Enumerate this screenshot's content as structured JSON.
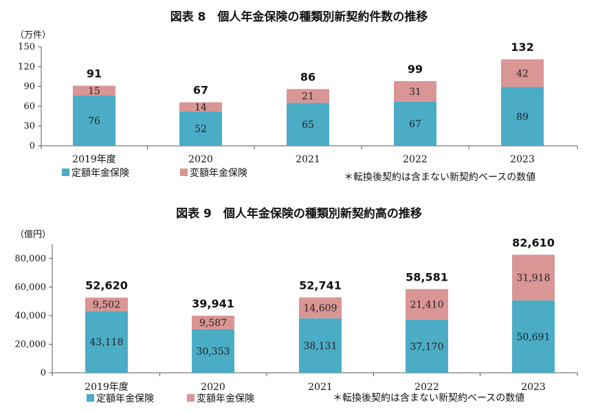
{
  "colors": {
    "fixed": "#4bacc6",
    "variable": "#d99694"
  },
  "chart_data": [
    {
      "type": "bar",
      "stacked": true,
      "title": "図表 8　個人年金保険の種類別新契約件数の推移",
      "unit": "（万件）",
      "categories": [
        "2019年度",
        "2020",
        "2021",
        "2022",
        "2023"
      ],
      "series": [
        {
          "name": "定額年金保険",
          "values": [
            76,
            52,
            65,
            67,
            89
          ]
        },
        {
          "name": "変額年金保険",
          "values": [
            15,
            14,
            21,
            31,
            42
          ]
        }
      ],
      "totals": [
        91,
        67,
        86,
        99,
        132
      ],
      "value_labels": {
        "fixed": [
          "76",
          "52",
          "65",
          "67",
          "89"
        ],
        "variable": [
          "15",
          "14",
          "21",
          "31",
          "42"
        ],
        "totals": [
          "91",
          "67",
          "86",
          "99",
          "132"
        ]
      },
      "ylim": [
        0,
        150
      ],
      "yticks": [
        "0",
        "30",
        "60",
        "90",
        "120",
        "150"
      ],
      "ytick_values": [
        0,
        30,
        60,
        90,
        120,
        150
      ],
      "note": "＊転換後契約は含まない新契約ベースの数値",
      "legend_position": "bottom-left"
    },
    {
      "type": "bar",
      "stacked": true,
      "title": "図表 9　個人年金保険の種類別新契約高の推移",
      "unit": "（億円）",
      "categories": [
        "2019年度",
        "2020",
        "2021",
        "2022",
        "2023"
      ],
      "series": [
        {
          "name": "定額年金保険",
          "values": [
            43118,
            30353,
            38131,
            37170,
            50691
          ]
        },
        {
          "name": "変額年金保険",
          "values": [
            9502,
            9587,
            14609,
            21410,
            31918
          ]
        }
      ],
      "totals": [
        52620,
        39941,
        52741,
        58581,
        82610
      ],
      "value_labels": {
        "fixed": [
          "43,118",
          "30,353",
          "38,131",
          "37,170",
          "50,691"
        ],
        "variable": [
          "9,502",
          "9,587",
          "14,609",
          "21,410",
          "31,918"
        ],
        "totals": [
          "52,620",
          "39,941",
          "52,741",
          "58,581",
          "82,610"
        ]
      },
      "ylim": [
        0,
        90000
      ],
      "yticks": [
        "0",
        "20,000",
        "40,000",
        "60,000",
        "80,000"
      ],
      "ytick_values": [
        0,
        20000,
        40000,
        60000,
        80000
      ],
      "note": "＊転換後契約は含まない新契約ベースの数値",
      "legend_position": "bottom-left"
    }
  ]
}
